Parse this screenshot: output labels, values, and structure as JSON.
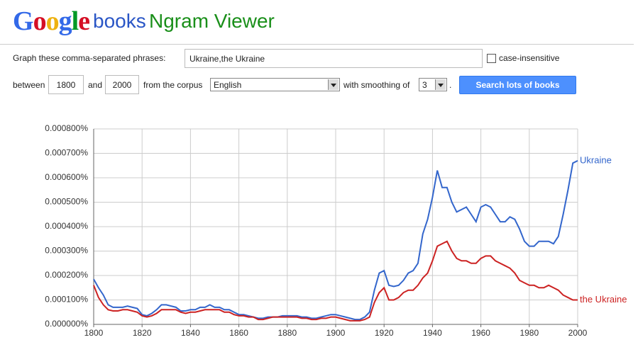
{
  "header": {
    "logo": "Google",
    "product": "books",
    "app_name": "Ngram Viewer"
  },
  "form": {
    "phrases_label": "Graph these comma-separated phrases:",
    "phrases_value": "Ukraine,the Ukraine",
    "case_label": "case-insensitive",
    "between_label": "between",
    "start_year": "1800",
    "and_label": "and",
    "end_year": "2000",
    "corpus_label": "from the corpus",
    "corpus_value": "English",
    "smoothing_label": "with smoothing of",
    "smoothing_value": "3",
    "period": ".",
    "button": "Search lots of books"
  },
  "chart_data": {
    "type": "line",
    "x": [
      1800,
      1802,
      1804,
      1806,
      1808,
      1810,
      1812,
      1814,
      1816,
      1818,
      1820,
      1822,
      1824,
      1826,
      1828,
      1830,
      1832,
      1834,
      1836,
      1838,
      1840,
      1842,
      1844,
      1846,
      1848,
      1850,
      1852,
      1854,
      1856,
      1858,
      1860,
      1862,
      1864,
      1866,
      1868,
      1870,
      1872,
      1874,
      1876,
      1878,
      1880,
      1882,
      1884,
      1886,
      1888,
      1890,
      1892,
      1894,
      1896,
      1898,
      1900,
      1902,
      1904,
      1906,
      1908,
      1910,
      1912,
      1914,
      1916,
      1918,
      1920,
      1922,
      1924,
      1926,
      1928,
      1930,
      1932,
      1934,
      1936,
      1938,
      1940,
      1942,
      1944,
      1946,
      1948,
      1950,
      1952,
      1954,
      1956,
      1958,
      1960,
      1962,
      1964,
      1966,
      1968,
      1970,
      1972,
      1974,
      1976,
      1978,
      1980,
      1982,
      1984,
      1986,
      1988,
      1990,
      1992,
      1994,
      1996,
      1998,
      2000
    ],
    "series": [
      {
        "name": "Ukraine",
        "color": "#3366cc",
        "values": [
          0.000185,
          0.00015,
          0.00012,
          8e-05,
          7e-05,
          7e-05,
          7e-05,
          7.5e-05,
          7e-05,
          6.5e-05,
          4e-05,
          3.5e-05,
          4.5e-05,
          6e-05,
          8e-05,
          8e-05,
          7.5e-05,
          7e-05,
          5.5e-05,
          5.5e-05,
          6e-05,
          6e-05,
          7e-05,
          7e-05,
          8e-05,
          7e-05,
          7e-05,
          6e-05,
          6e-05,
          5e-05,
          4e-05,
          4e-05,
          3.5e-05,
          3e-05,
          2.5e-05,
          2.5e-05,
          3e-05,
          3e-05,
          3e-05,
          3.5e-05,
          3.5e-05,
          3.5e-05,
          3.5e-05,
          3e-05,
          3e-05,
          2.5e-05,
          2.5e-05,
          3e-05,
          3.5e-05,
          4e-05,
          4e-05,
          3.5e-05,
          3e-05,
          2.5e-05,
          2e-05,
          2e-05,
          3e-05,
          5e-05,
          0.00014,
          0.00021,
          0.00022,
          0.00016,
          0.000155,
          0.00016,
          0.00018,
          0.00021,
          0.00022,
          0.00025,
          0.00037,
          0.00043,
          0.00052,
          0.00063,
          0.00056,
          0.00056,
          0.0005,
          0.00046,
          0.00047,
          0.00048,
          0.00045,
          0.00042,
          0.00048,
          0.00049,
          0.00048,
          0.00045,
          0.00042,
          0.00042,
          0.00044,
          0.00043,
          0.00039,
          0.00034,
          0.00032,
          0.00032,
          0.00034,
          0.00034,
          0.00034,
          0.00033,
          0.00036,
          0.00045,
          0.00055,
          0.00066,
          0.00067
        ]
      },
      {
        "name": "the Ukraine",
        "color": "#cc2222",
        "values": [
          0.00016,
          0.00011,
          8e-05,
          6e-05,
          5.5e-05,
          5.5e-05,
          6e-05,
          6e-05,
          5.5e-05,
          5e-05,
          3.5e-05,
          3e-05,
          3.5e-05,
          4.5e-05,
          6e-05,
          6e-05,
          6e-05,
          6e-05,
          5e-05,
          4.5e-05,
          5e-05,
          5e-05,
          5.5e-05,
          6e-05,
          6e-05,
          6e-05,
          6e-05,
          5e-05,
          5e-05,
          4e-05,
          3.5e-05,
          3.5e-05,
          3e-05,
          3e-05,
          2e-05,
          2e-05,
          2.5e-05,
          3e-05,
          3e-05,
          3e-05,
          3e-05,
          3e-05,
          3e-05,
          2.5e-05,
          2.5e-05,
          2e-05,
          2e-05,
          2.5e-05,
          2.5e-05,
          3e-05,
          3e-05,
          2.5e-05,
          2e-05,
          1.5e-05,
          1.5e-05,
          1.5e-05,
          2e-05,
          3e-05,
          9e-05,
          0.00013,
          0.00015,
          0.0001,
          0.0001,
          0.00011,
          0.00013,
          0.00014,
          0.00014,
          0.00016,
          0.00019,
          0.00021,
          0.00026,
          0.00032,
          0.00033,
          0.00034,
          0.0003,
          0.00027,
          0.00026,
          0.00026,
          0.00025,
          0.00025,
          0.00027,
          0.00028,
          0.00028,
          0.00026,
          0.00025,
          0.00024,
          0.00023,
          0.00021,
          0.00018,
          0.00017,
          0.00016,
          0.00016,
          0.00015,
          0.00015,
          0.00016,
          0.00015,
          0.00014,
          0.00012,
          0.00011,
          0.0001,
          0.0001
        ]
      }
    ],
    "xlim": [
      1800,
      2000
    ],
    "xticks": [
      1800,
      1820,
      1840,
      1860,
      1880,
      1900,
      1920,
      1940,
      1960,
      1980,
      2000
    ],
    "ylim": [
      0,
      0.0008
    ],
    "yticks": [
      {
        "value": 0,
        "label": "0.000000%"
      },
      {
        "value": 0.0001,
        "label": "0.000100%"
      },
      {
        "value": 0.0002,
        "label": "0.000200%"
      },
      {
        "value": 0.0003,
        "label": "0.000300%"
      },
      {
        "value": 0.0004,
        "label": "0.000400%"
      },
      {
        "value": 0.0005,
        "label": "0.000500%"
      },
      {
        "value": 0.0006,
        "label": "0.000600%"
      },
      {
        "value": 0.0007,
        "label": "0.000700%"
      },
      {
        "value": 0.0008,
        "label": "0.000800%"
      }
    ],
    "grid": true
  }
}
